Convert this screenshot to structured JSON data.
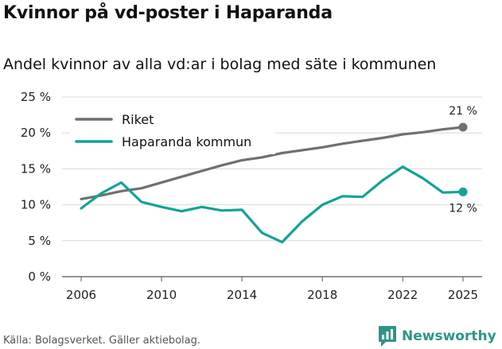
{
  "header": {
    "title": "Kvinnor på vd-poster i Haparanda",
    "subtitle": "Andel kvinnor av alla vd:ar i bolag med säte i kommunen"
  },
  "footer": {
    "source": "Källa: Bolagsverket. Gäller aktiebolag.",
    "brand": "Newsworthy"
  },
  "colors": {
    "riket": "#707070",
    "haparanda": "#13a395",
    "grid": "#d9d9d9",
    "brand": "#2e9488"
  },
  "chart_data": {
    "type": "line",
    "title": "Kvinnor på vd-poster i Haparanda",
    "xlabel": "",
    "ylabel": "",
    "x": [
      2006,
      2007,
      2008,
      2009,
      2010,
      2011,
      2012,
      2013,
      2014,
      2015,
      2016,
      2017,
      2018,
      2019,
      2020,
      2021,
      2022,
      2023,
      2024,
      2025
    ],
    "xlim": [
      2006,
      2025
    ],
    "ylim": [
      0,
      25
    ],
    "x_ticks": [
      2006,
      2010,
      2014,
      2018,
      2022,
      2025
    ],
    "x_tick_labels": [
      "2006",
      "2010",
      "2014",
      "2018",
      "2022",
      "2025"
    ],
    "y_ticks": [
      0,
      5,
      10,
      15,
      20,
      25
    ],
    "y_tick_labels": [
      "0 %",
      "5 %",
      "10 %",
      "15 %",
      "20 %",
      "25 %"
    ],
    "grid": true,
    "legend_position": "top-left",
    "series": [
      {
        "name": "Riket",
        "color": "#707070",
        "values": [
          10.8,
          11.3,
          11.9,
          12.3,
          13.1,
          13.9,
          14.7,
          15.5,
          16.2,
          16.6,
          17.2,
          17.6,
          18.0,
          18.5,
          18.9,
          19.3,
          19.8,
          20.1,
          20.5,
          20.8
        ],
        "end_label": "21 %"
      },
      {
        "name": "Haparanda kommun",
        "color": "#13a395",
        "values": [
          9.5,
          11.6,
          13.1,
          10.4,
          9.7,
          9.1,
          9.7,
          9.2,
          9.3,
          6.1,
          4.8,
          7.7,
          10.0,
          11.2,
          11.1,
          13.4,
          15.3,
          13.7,
          11.7,
          11.8
        ],
        "end_label": "12 %"
      }
    ]
  }
}
